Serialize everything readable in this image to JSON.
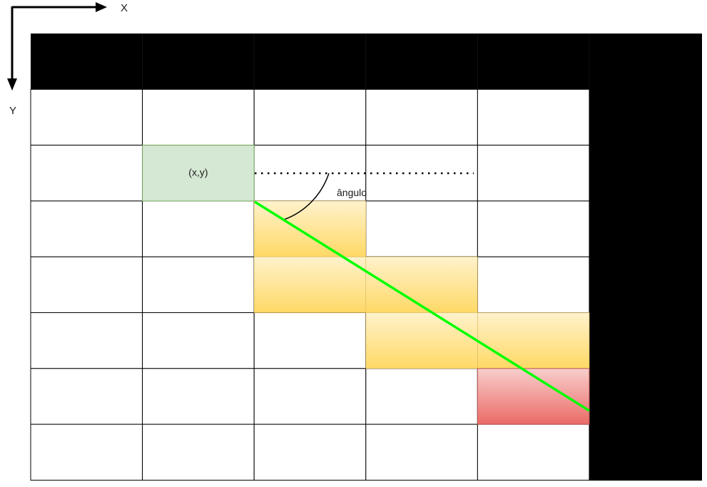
{
  "axes": {
    "x_label": "X",
    "y_label": "Y"
  },
  "grid": {
    "columns": 6,
    "rows": 8
  },
  "origin_cell": {
    "col": 1,
    "row": 2,
    "label": "(x,y)",
    "fill": "#d5e8d4",
    "stroke": "#82b366"
  },
  "traversed_cells": [
    {
      "col": 2,
      "row": 3
    },
    {
      "col": 2,
      "row": 4
    },
    {
      "col": 3,
      "row": 4
    },
    {
      "col": 3,
      "row": 5
    },
    {
      "col": 4,
      "row": 5
    }
  ],
  "hit_cell": {
    "col": 4,
    "row": 6
  },
  "angle": {
    "label": "ângulo"
  },
  "colors": {
    "wall": "#000000",
    "grid_line": "#000000",
    "ray": "#00ff00",
    "traversed_top": "#fff2cc",
    "traversed_bottom": "#ffd966",
    "traversed_stroke": "#d6b656",
    "hit_top": "#f8cecc",
    "hit_bottom": "#ea6b66",
    "hit_stroke": "#b85450"
  }
}
